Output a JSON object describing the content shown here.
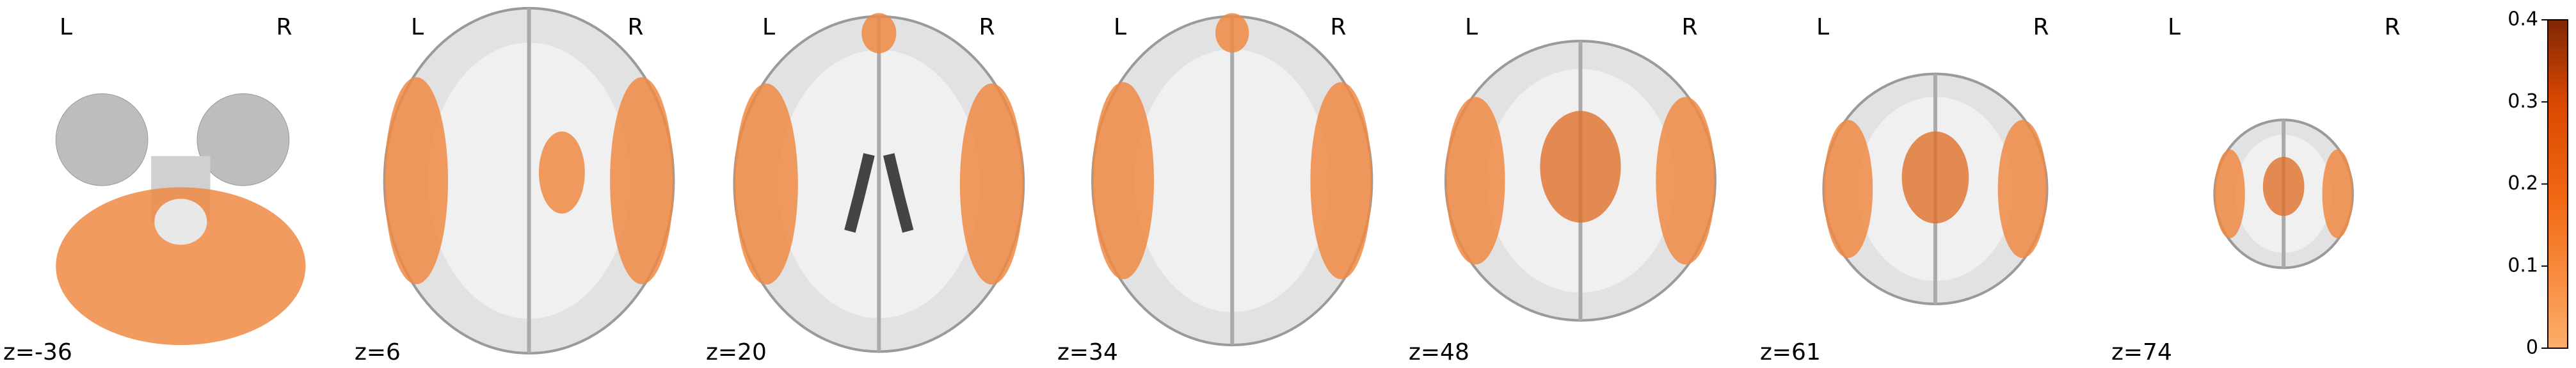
{
  "panels": [
    {
      "left": "L",
      "right": "R",
      "slice": "z=-36"
    },
    {
      "left": "L",
      "right": "R",
      "slice": "z=6"
    },
    {
      "left": "L",
      "right": "R",
      "slice": "z=20"
    },
    {
      "left": "L",
      "right": "R",
      "slice": "z=34"
    },
    {
      "left": "L",
      "right": "R",
      "slice": "z=48"
    },
    {
      "left": "L",
      "right": "R",
      "slice": "z=61"
    },
    {
      "left": "L",
      "right": "R",
      "slice": "z=74"
    }
  ],
  "colorbar": {
    "lim": [
      0,
      0.4
    ],
    "ticks": [
      0,
      0.1,
      0.2,
      0.3,
      0.4
    ]
  }
}
